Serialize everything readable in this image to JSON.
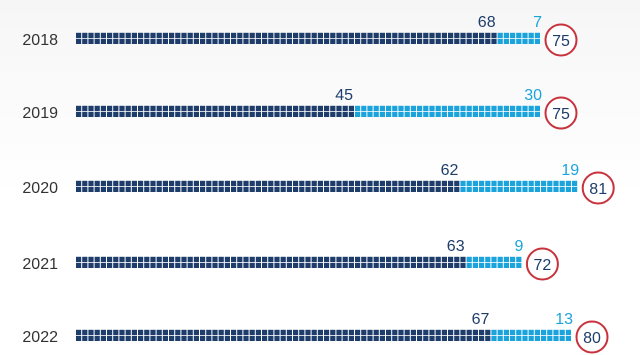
{
  "chart_data": {
    "type": "bar",
    "categories": [
      "2018",
      "2019",
      "2020",
      "2021",
      "2022"
    ],
    "series": [
      {
        "values": [
          68,
          45,
          62,
          63,
          67
        ]
      },
      {
        "values": [
          7,
          30,
          19,
          9,
          13
        ]
      }
    ],
    "totals": [
      75,
      75,
      81,
      72,
      80
    ],
    "colors": {
      "dark": "#1e3d6b",
      "light": "#1ba3dc",
      "total_ring": "#c8323c",
      "total_text": "#1e3d6b",
      "year_text": "#333333"
    }
  }
}
